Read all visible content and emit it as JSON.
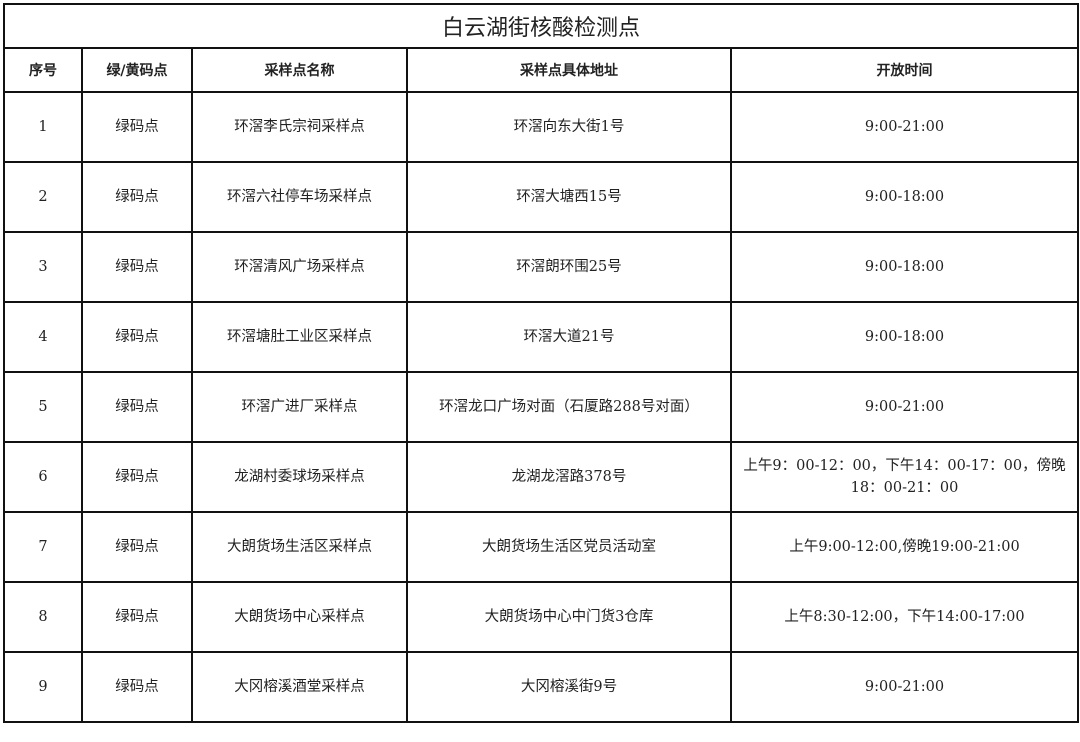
{
  "title": "白云湖街核酸检测点",
  "headers": [
    "序号",
    "绿/黄码点",
    "采样点名称",
    "采样点具体地址",
    "开放时间"
  ],
  "rows": [
    [
      "1",
      "绿码点",
      "环滘李氏宗祠采样点",
      "环滘向东大街1号",
      "9:00-21:00"
    ],
    [
      "2",
      "绿码点",
      "环滘六社停车场采样点",
      "环滘大塘西15号",
      "9:00-18:00"
    ],
    [
      "3",
      "绿码点",
      "环滘清风广场采样点",
      "环滘朗环围25号",
      "9:00-18:00"
    ],
    [
      "4",
      "绿码点",
      "环滘塘肚工业区采样点",
      "环滘大道21号",
      "9:00-18:00"
    ],
    [
      "5",
      "绿码点",
      "环滘广进厂采样点",
      "环滘龙口广场对面（石厦路288号对面）",
      "9:00-21:00"
    ],
    [
      "6",
      "绿码点",
      "龙湖村委球场采样点",
      "龙湖龙滘路378号",
      "上午9：00-12：00，下午14：00-17：00，傍晚18：00-21：00"
    ],
    [
      "7",
      "绿码点",
      "大朗货场生活区采样点",
      "大朗货场生活区党员活动室",
      "上午9:00-12:00,傍晚19:00-21:00"
    ],
    [
      "8",
      "绿码点",
      "大朗货场中心采样点",
      "大朗货场中心中门货3仓库",
      "上午8:30-12:00，下午14:00-17:00"
    ],
    [
      "9",
      "绿码点",
      "大冈榕溪酒堂采样点",
      "大冈榕溪街9号",
      "9:00-21:00"
    ]
  ]
}
